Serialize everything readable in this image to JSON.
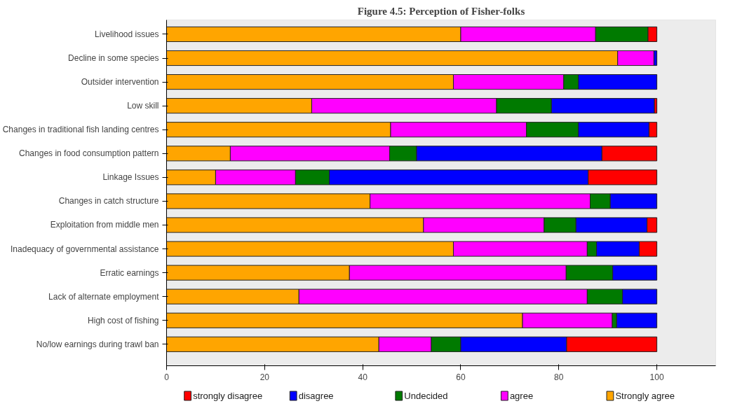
{
  "chart_data": {
    "type": "bar",
    "orientation": "horizontal",
    "stacked": true,
    "title": "Figure 4.5: Perception of Fisher-folks",
    "categories": [
      "Livelihood issues",
      "Decline in some species",
      "Outsider intervention",
      "Low skill",
      "Changes in traditional fish landing centres",
      "Changes in food consumption pattern",
      "Linkage Issues",
      "Changes in catch structure",
      "Exploitation from middle men",
      "Inadequacy of governmental assistance",
      "Erratic earnings",
      "Lack of alternate employment",
      "High cost of fishing",
      "No/low earnings during trawl ban"
    ],
    "series": [
      {
        "name": "Strongly agree",
        "color": "#ffa500",
        "values": [
          60,
          92,
          58.5,
          29.6,
          45.7,
          13,
          10,
          41.5,
          52.4,
          58.5,
          37.3,
          27,
          72.6,
          43.3
        ]
      },
      {
        "name": "agree",
        "color": "#ff00ff",
        "values": [
          27.5,
          7.4,
          22.5,
          37.7,
          27.7,
          32.5,
          16.3,
          44.9,
          24.6,
          27.3,
          44.2,
          58.8,
          18.3,
          10.7
        ]
      },
      {
        "name": "Undecided",
        "color": "#007a00",
        "values": [
          10.7,
          0,
          3,
          11.2,
          10.6,
          5.5,
          6.9,
          4.1,
          6.5,
          1.9,
          9.5,
          7.2,
          0.9,
          6
        ]
      },
      {
        "name": "disagree",
        "color": "#0000ff",
        "values": [
          0,
          0.6,
          16,
          21,
          14.4,
          37.8,
          52.8,
          9.5,
          14.5,
          8.7,
          9,
          7,
          8.2,
          21.6
        ]
      },
      {
        "name": "strongly disagree",
        "color": "#ff0000",
        "values": [
          1.8,
          0,
          0,
          0.5,
          1.6,
          11.2,
          14,
          0,
          2,
          3.6,
          0,
          0,
          0,
          18.4
        ]
      }
    ],
    "xlim": [
      0,
      112
    ],
    "xticks": [
      0,
      20,
      40,
      60,
      80,
      100
    ],
    "grid": false,
    "legend": "bottom"
  }
}
